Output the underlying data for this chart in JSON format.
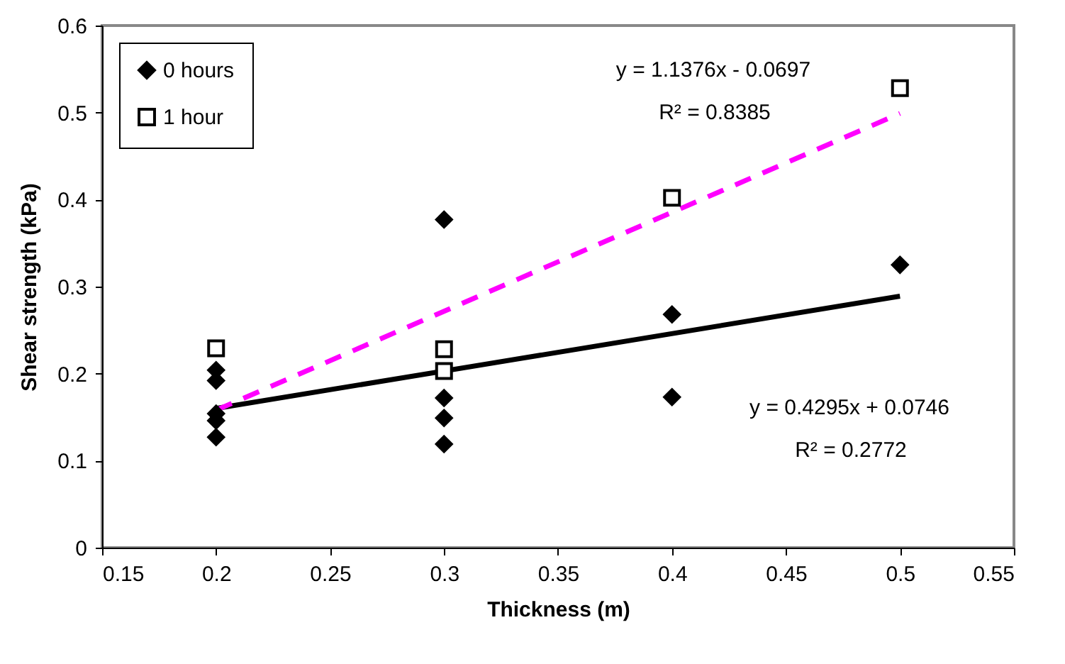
{
  "chart_data": {
    "type": "scatter",
    "xlabel": "Thickness (m)",
    "ylabel": "Shear strength (kPa)",
    "xlim": [
      0.15,
      0.55
    ],
    "xticks": [
      0.15,
      0.2,
      0.25,
      0.3,
      0.35,
      0.4,
      0.45,
      0.5,
      0.55
    ],
    "ylim": [
      0,
      0.6
    ],
    "yticks": [
      0,
      0.1,
      0.2,
      0.3,
      0.4,
      0.5,
      0.6
    ],
    "grid": false,
    "legend": "top left",
    "series": [
      {
        "name": "0 hours",
        "marker": "diamond",
        "color": "#000000",
        "x": [
          0.2,
          0.2,
          0.2,
          0.2,
          0.2,
          0.3,
          0.3,
          0.3,
          0.3,
          0.4,
          0.4,
          0.5
        ],
        "values": [
          0.204,
          0.192,
          0.154,
          0.146,
          0.127,
          0.377,
          0.172,
          0.149,
          0.119,
          0.268,
          0.173,
          0.325
        ]
      },
      {
        "name": "1 hour",
        "marker": "square",
        "color": "#000000",
        "x": [
          0.2,
          0.3,
          0.3,
          0.4,
          0.5
        ],
        "values": [
          0.229,
          0.228,
          0.203,
          0.402,
          0.528
        ]
      },
      {
        "type": "line",
        "line_style": "solid",
        "color": "#000000",
        "x": [
          0.2,
          0.5
        ],
        "values": [
          0.16,
          0.289
        ]
      },
      {
        "type": "line",
        "line_style": "dashed",
        "color": "#ff00ff",
        "x": [
          0.2,
          0.5
        ],
        "values": [
          0.158,
          0.499
        ]
      }
    ],
    "annotations": [
      "y = 1.1376x - 0.0697",
      "R² = 0.8385",
      "y = 0.4295x + 0.0746",
      "R² = 0.2772"
    ]
  }
}
